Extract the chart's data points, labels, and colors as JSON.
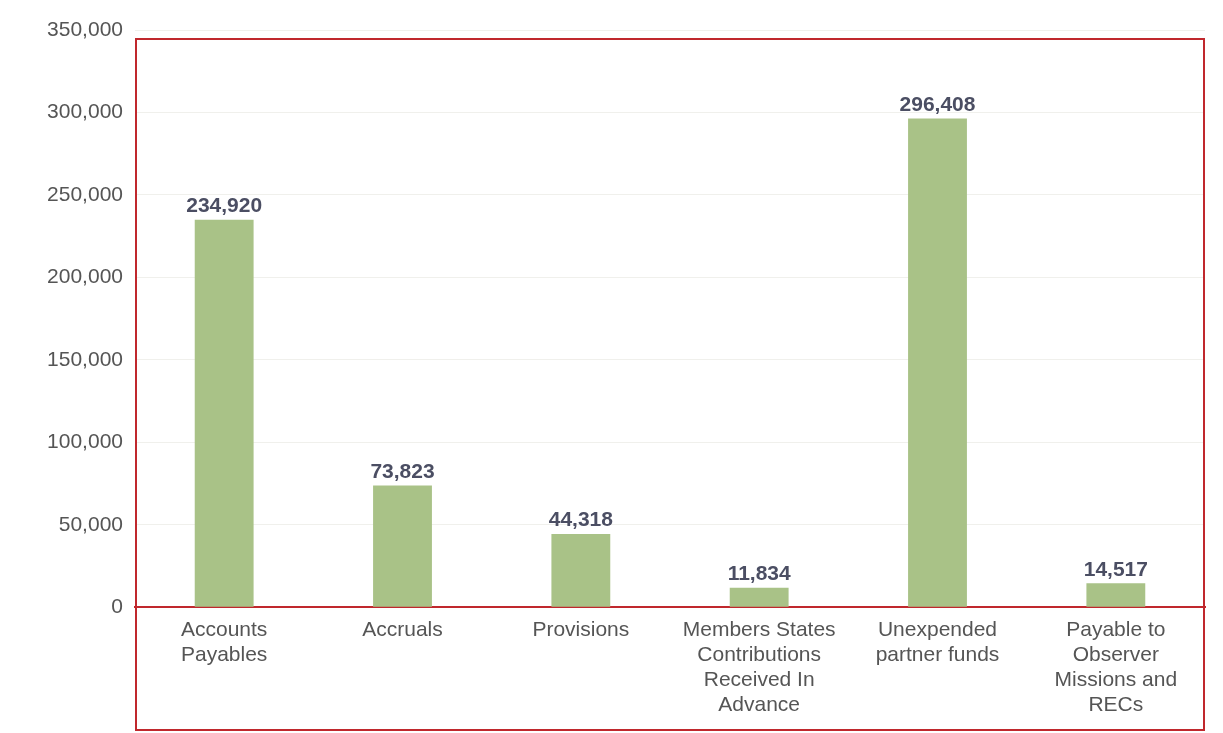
{
  "chart_data": {
    "type": "bar",
    "categories": [
      "Accounts Payables",
      "Accruals",
      "Provisions",
      "Members States Contributions Received In Advance",
      "Unexpended partner funds",
      "Payable to Observer Missions and RECs"
    ],
    "values": [
      234920,
      73823,
      44318,
      11834,
      296408,
      14517
    ],
    "color": "#a9c287",
    "ylim": [
      0,
      350000
    ],
    "yticks": [
      {
        "value": 0,
        "label": "0"
      },
      {
        "value": 50000,
        "label": "50,000"
      },
      {
        "value": 100000,
        "label": "100,000"
      },
      {
        "value": 150000,
        "label": "150,000"
      },
      {
        "value": 200000,
        "label": "200,000"
      },
      {
        "value": 250000,
        "label": "250,000"
      },
      {
        "value": 300000,
        "label": "300,000"
      },
      {
        "value": 350000,
        "label": "350,000"
      }
    ],
    "grid": "y",
    "value_labels": [
      "234,920",
      "73,823",
      "44,318",
      "11,834",
      "296,408",
      "14,517"
    ]
  }
}
